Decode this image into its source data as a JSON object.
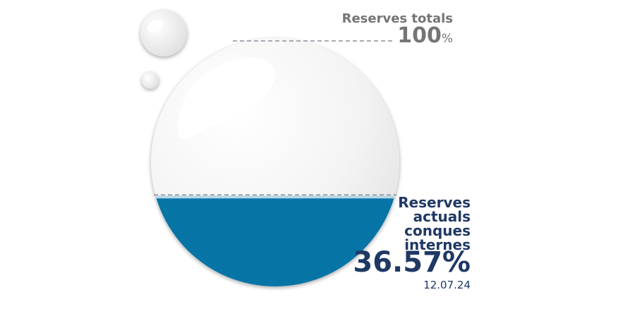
{
  "chart_data": {
    "type": "gauge",
    "max_label": "Reserves totals",
    "max_value": 100,
    "max_unit": "%",
    "current_label": "Reserves actuals conques internes",
    "current_value": 36.57,
    "current_value_text": "36.57%",
    "date": "12.07.24",
    "colors": {
      "water": "#0774a6",
      "water_surface": "#b7d6e6",
      "bubble": "#f2f2f2",
      "dashed_line": "#8a8f99",
      "total_text": "#757575",
      "current_text": "#1f3864"
    }
  }
}
